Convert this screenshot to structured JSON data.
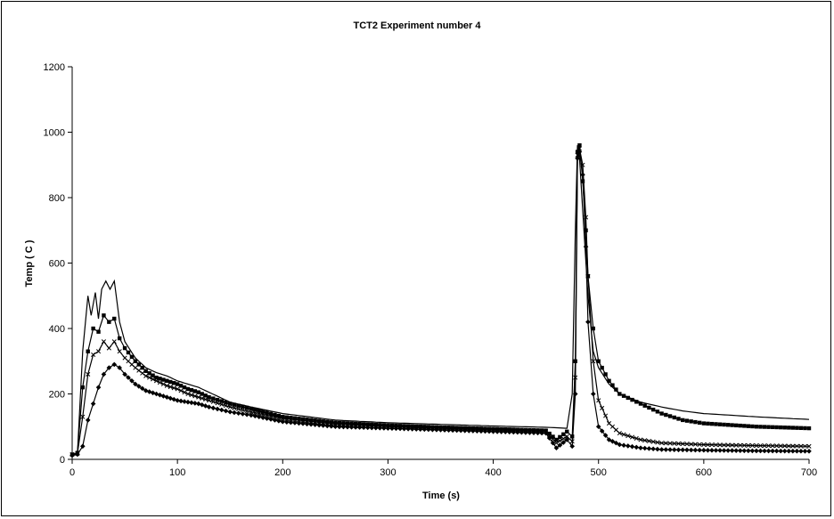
{
  "chart_data": {
    "type": "line",
    "title": "TCT2 Experiment number 4",
    "xlabel": "Time (s)",
    "ylabel": "Temp ( C )",
    "xlim": [
      0,
      700
    ],
    "ylim": [
      0,
      1200
    ],
    "xticks": [
      0,
      100,
      200,
      300,
      400,
      500,
      600,
      700
    ],
    "yticks": [
      0,
      200,
      400,
      600,
      800,
      1000,
      1200
    ],
    "grid": false,
    "legend": "none",
    "series": [
      {
        "marker": "none",
        "color": "#000000",
        "x": [
          0,
          5,
          10,
          15,
          18,
          22,
          25,
          28,
          32,
          36,
          40,
          45,
          50,
          60,
          70,
          80,
          90,
          100,
          110,
          120,
          130,
          140,
          150,
          170,
          200,
          250,
          300,
          350,
          400,
          450,
          470,
          475,
          478,
          480,
          482,
          485,
          490,
          495,
          500,
          510,
          520,
          540,
          560,
          580,
          600,
          650,
          700
        ],
        "y": [
          15,
          18,
          330,
          500,
          440,
          510,
          430,
          520,
          545,
          520,
          545,
          420,
          360,
          310,
          280,
          265,
          255,
          240,
          230,
          220,
          205,
          190,
          175,
          160,
          140,
          120,
          112,
          107,
          102,
          98,
          95,
          200,
          700,
          960,
          920,
          760,
          500,
          330,
          280,
          230,
          200,
          175,
          160,
          148,
          140,
          130,
          122
        ]
      },
      {
        "marker": "square",
        "color": "#000000",
        "x": [
          0,
          5,
          10,
          15,
          20,
          25,
          30,
          35,
          40,
          45,
          50,
          60,
          70,
          80,
          90,
          100,
          110,
          120,
          130,
          150,
          170,
          200,
          250,
          300,
          350,
          400,
          450,
          460,
          470,
          475,
          478,
          480,
          482,
          485,
          488,
          490,
          495,
          500,
          510,
          520,
          540,
          560,
          580,
          600,
          650,
          700
        ],
        "y": [
          15,
          20,
          220,
          330,
          400,
          390,
          440,
          420,
          430,
          370,
          340,
          300,
          270,
          250,
          240,
          230,
          215,
          205,
          190,
          170,
          155,
          130,
          112,
          104,
          98,
          93,
          88,
          60,
          85,
          70,
          300,
          940,
          960,
          850,
          700,
          560,
          400,
          300,
          240,
          200,
          170,
          140,
          120,
          110,
          100,
          95
        ]
      },
      {
        "marker": "x",
        "color": "#000000",
        "x": [
          0,
          5,
          10,
          15,
          20,
          25,
          30,
          35,
          40,
          45,
          50,
          60,
          70,
          80,
          90,
          100,
          110,
          120,
          130,
          150,
          170,
          200,
          250,
          300,
          350,
          400,
          450,
          460,
          470,
          475,
          478,
          480,
          482,
          485,
          488,
          490,
          495,
          500,
          510,
          520,
          540,
          560,
          600,
          650,
          700
        ],
        "y": [
          15,
          18,
          130,
          260,
          320,
          330,
          360,
          340,
          360,
          330,
          310,
          280,
          255,
          240,
          225,
          215,
          200,
          190,
          180,
          160,
          145,
          125,
          108,
          100,
          95,
          90,
          85,
          50,
          70,
          55,
          250,
          930,
          950,
          900,
          740,
          560,
          300,
          180,
          110,
          80,
          60,
          50,
          45,
          42,
          40
        ]
      },
      {
        "marker": "diamond",
        "color": "#000000",
        "x": [
          0,
          5,
          10,
          15,
          20,
          25,
          30,
          35,
          40,
          45,
          50,
          60,
          70,
          80,
          90,
          100,
          110,
          120,
          130,
          150,
          170,
          200,
          250,
          300,
          350,
          400,
          450,
          460,
          470,
          475,
          478,
          480,
          482,
          485,
          488,
          490,
          495,
          500,
          510,
          520,
          540,
          560,
          600,
          650,
          700
        ],
        "y": [
          12,
          15,
          40,
          120,
          170,
          220,
          260,
          280,
          290,
          280,
          260,
          230,
          210,
          200,
          190,
          180,
          175,
          170,
          160,
          145,
          135,
          115,
          100,
          95,
          90,
          85,
          80,
          35,
          60,
          40,
          200,
          920,
          940,
          870,
          650,
          420,
          200,
          100,
          60,
          45,
          35,
          30,
          28,
          26,
          25
        ]
      }
    ]
  }
}
